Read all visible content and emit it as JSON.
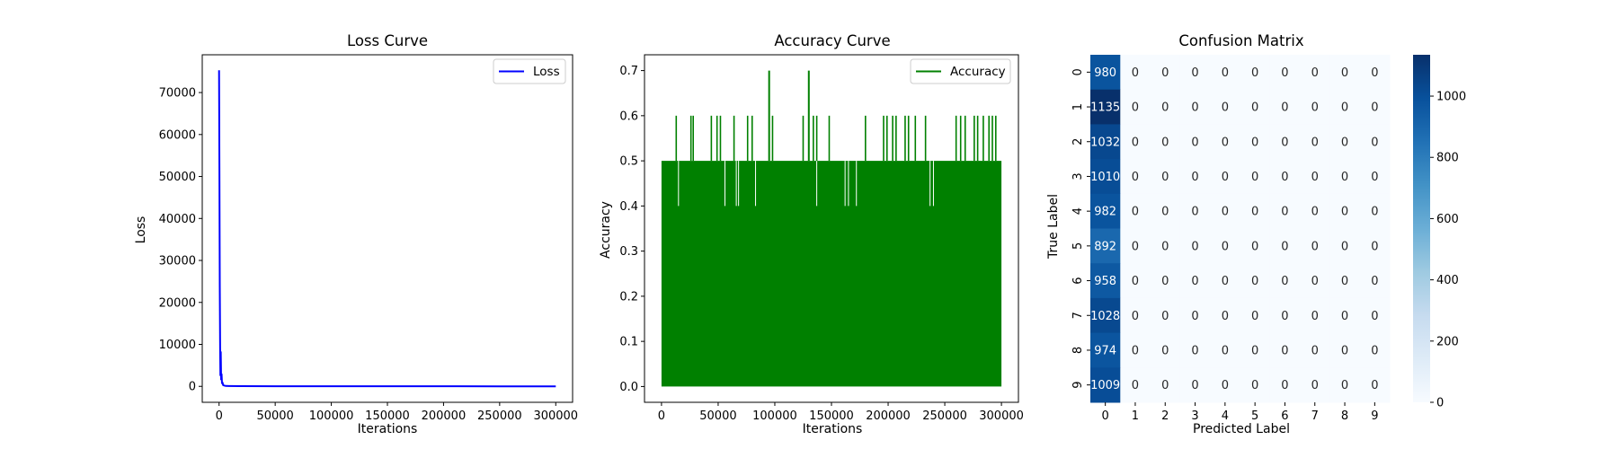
{
  "chart_data": [
    {
      "type": "line",
      "title": "Loss Curve",
      "xlabel": "Iterations",
      "ylabel": "Loss",
      "xlim": [
        -15000,
        315000
      ],
      "ylim": [
        -3800,
        79000
      ],
      "xticks": [
        0,
        50000,
        100000,
        150000,
        200000,
        250000,
        300000
      ],
      "xtick_labels": [
        "0",
        "50000",
        "100000",
        "150000",
        "200000",
        "250000",
        "300000"
      ],
      "yticks": [
        0,
        10000,
        20000,
        30000,
        40000,
        50000,
        60000,
        70000
      ],
      "ytick_labels": [
        "0",
        "10000",
        "20000",
        "30000",
        "40000",
        "50000",
        "60000",
        "70000"
      ],
      "legend": "top-right",
      "grid": false,
      "color": "#0000ff",
      "series": [
        {
          "name": "Loss",
          "x": [
            0,
            300,
            600,
            900,
            1200,
            1500,
            1800,
            2200,
            2600,
            3000,
            3600,
            4500,
            6000,
            10000,
            20000,
            50000,
            100000,
            150000,
            200000,
            250000,
            300000
          ],
          "y": [
            75300,
            52000,
            24000,
            9000,
            2500,
            8300,
            1500,
            3000,
            600,
            1000,
            300,
            200,
            100,
            80,
            60,
            40,
            30,
            25,
            20,
            18,
            15
          ]
        }
      ]
    },
    {
      "type": "line",
      "title": "Accuracy Curve",
      "xlabel": "Iterations",
      "ylabel": "Accuracy",
      "xlim": [
        -15000,
        315000
      ],
      "ylim": [
        -0.035,
        0.735
      ],
      "xticks": [
        0,
        50000,
        100000,
        150000,
        200000,
        250000,
        300000
      ],
      "xtick_labels": [
        "0",
        "50000",
        "100000",
        "150000",
        "200000",
        "250000",
        "300000"
      ],
      "yticks": [
        0.0,
        0.1,
        0.2,
        0.3,
        0.4,
        0.5,
        0.6,
        0.7
      ],
      "ytick_labels": [
        "0.0",
        "0.1",
        "0.2",
        "0.3",
        "0.4",
        "0.5",
        "0.6",
        "0.7"
      ],
      "legend": "top-right",
      "grid": false,
      "color": "#008000",
      "series": [
        {
          "name": "Accuracy",
          "x_range": [
            0,
            300000
          ],
          "min": 0.0,
          "typical_max": 0.5,
          "spikes_0_6_x": [
            13000,
            26000,
            28000,
            44000,
            49000,
            52000,
            64000,
            76000,
            80000,
            98000,
            125000,
            134000,
            137000,
            148000,
            180000,
            196000,
            199000,
            204000,
            207000,
            215000,
            218000,
            224000,
            233000,
            260000,
            264000,
            268000,
            276000,
            279000,
            284000,
            289000,
            292000,
            295000
          ],
          "spikes_0_7_x": [
            95000,
            130000
          ],
          "dips_0_4_x": [
            15000,
            56000,
            66000,
            68000,
            83000,
            137000,
            162000,
            165000,
            172000,
            237000,
            240000
          ]
        }
      ]
    },
    {
      "type": "heatmap",
      "title": "Confusion Matrix",
      "xlabel": "Predicted Label",
      "ylabel": "True Label",
      "x_categories": [
        "0",
        "1",
        "2",
        "3",
        "4",
        "5",
        "6",
        "7",
        "8",
        "9"
      ],
      "y_categories": [
        "0",
        "1",
        "2",
        "3",
        "4",
        "5",
        "6",
        "7",
        "8",
        "9"
      ],
      "colormap": "Blues",
      "vmin": 0,
      "vmax": 1135,
      "colorbar_ticks": [
        0,
        200,
        400,
        600,
        800,
        1000
      ],
      "colorbar_tick_labels": [
        "0",
        "200",
        "400",
        "600",
        "800",
        "1000"
      ],
      "values": [
        [
          980,
          0,
          0,
          0,
          0,
          0,
          0,
          0,
          0,
          0
        ],
        [
          1135,
          0,
          0,
          0,
          0,
          0,
          0,
          0,
          0,
          0
        ],
        [
          1032,
          0,
          0,
          0,
          0,
          0,
          0,
          0,
          0,
          0
        ],
        [
          1010,
          0,
          0,
          0,
          0,
          0,
          0,
          0,
          0,
          0
        ],
        [
          982,
          0,
          0,
          0,
          0,
          0,
          0,
          0,
          0,
          0
        ],
        [
          892,
          0,
          0,
          0,
          0,
          0,
          0,
          0,
          0,
          0
        ],
        [
          958,
          0,
          0,
          0,
          0,
          0,
          0,
          0,
          0,
          0
        ],
        [
          1028,
          0,
          0,
          0,
          0,
          0,
          0,
          0,
          0,
          0
        ],
        [
          974,
          0,
          0,
          0,
          0,
          0,
          0,
          0,
          0,
          0
        ],
        [
          1009,
          0,
          0,
          0,
          0,
          0,
          0,
          0,
          0,
          0
        ]
      ]
    }
  ]
}
